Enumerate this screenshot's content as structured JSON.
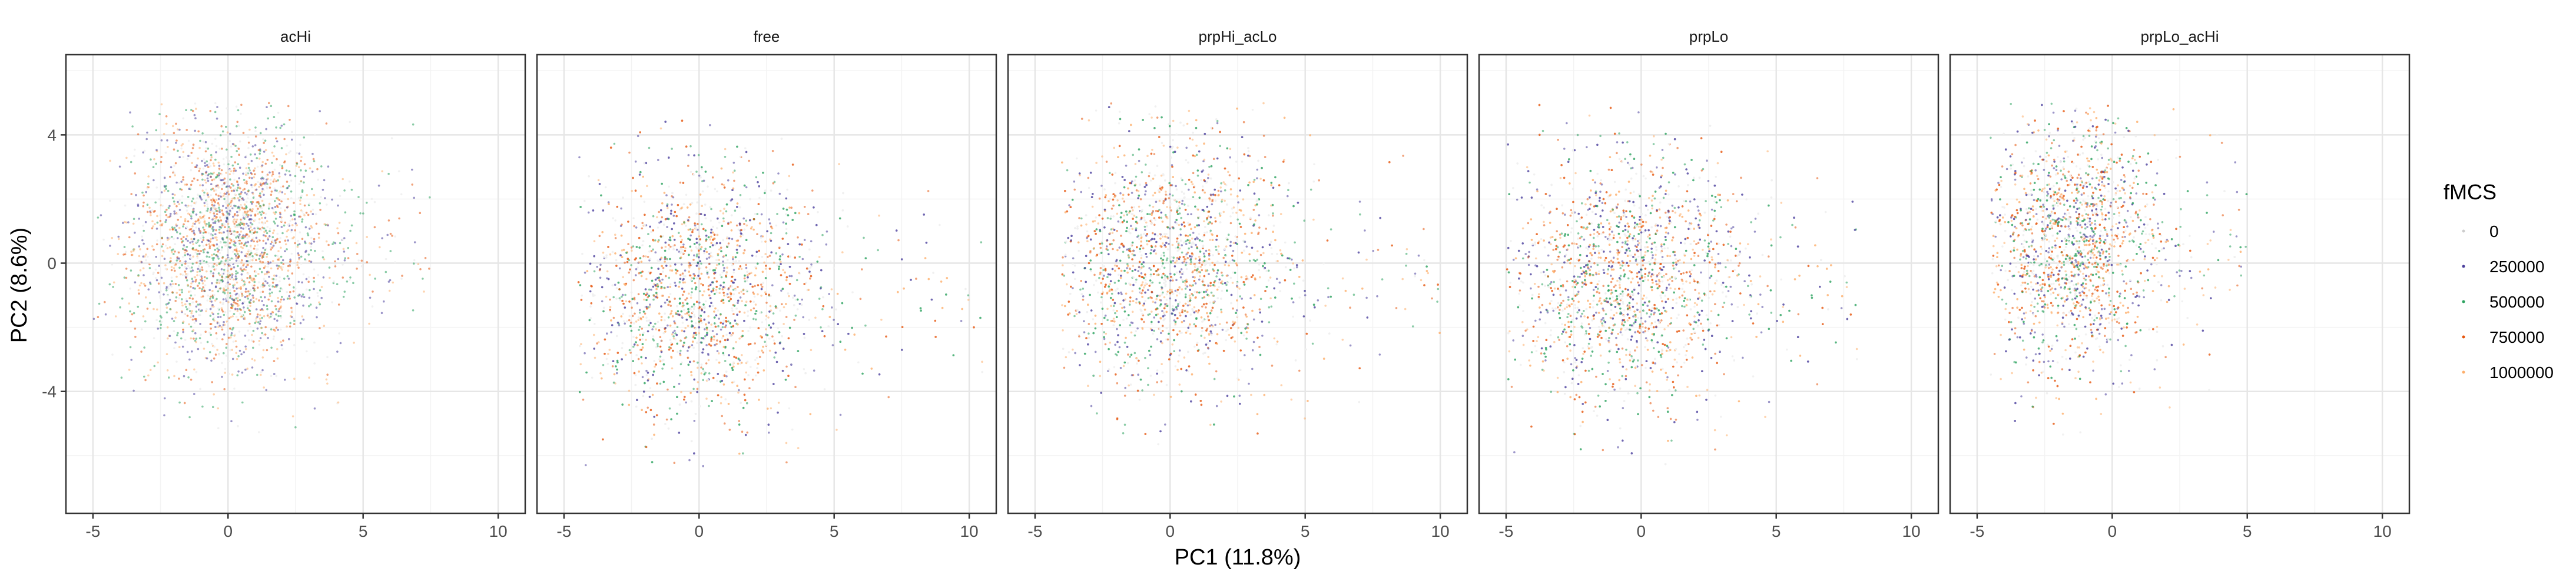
{
  "chart_data": {
    "type": "scatter",
    "xlabel": "PC1 (11.8%)",
    "ylabel": "PC2 (8.6%)",
    "xlim": [
      -6,
      11
    ],
    "ylim": [
      -7.8,
      6.5
    ],
    "x_ticks": [
      -5,
      0,
      5,
      10
    ],
    "y_ticks": [
      -4,
      0,
      4
    ],
    "grid": true,
    "legend": {
      "title": "fMCS",
      "position": "right",
      "entries": [
        {
          "label": "0",
          "color": "#f0f0f0"
        },
        {
          "label": "250000",
          "color": "#4b3f9c"
        },
        {
          "label": "500000",
          "color": "#2ca25f"
        },
        {
          "label": "750000",
          "color": "#e6550d"
        },
        {
          "label": "1000000",
          "color": "#fdae6b"
        }
      ]
    },
    "panels": [
      {
        "name": "acHi",
        "center": [
          0,
          0.5
        ],
        "spread": [
          1.8,
          1.9
        ],
        "x_range": [
          -5,
          7.5
        ],
        "y_range": [
          -5.5,
          5
        ]
      },
      {
        "name": "free",
        "center": [
          0,
          -0.9
        ],
        "spread": [
          2.2,
          1.9
        ],
        "x_range": [
          -4.5,
          10.5
        ],
        "y_range": [
          -6.5,
          4.5
        ]
      },
      {
        "name": "prpHi_acLo",
        "center": [
          0,
          0
        ],
        "spread": [
          2.2,
          1.9
        ],
        "x_range": [
          -4,
          10
        ],
        "y_range": [
          -6,
          5
        ]
      },
      {
        "name": "prpLo",
        "center": [
          -0.5,
          -0.5
        ],
        "spread": [
          2.2,
          1.9
        ],
        "x_range": [
          -5,
          8
        ],
        "y_range": [
          -6.5,
          5
        ]
      },
      {
        "name": "prpLo_acHi",
        "center": [
          -1.5,
          0.6
        ],
        "spread": [
          1.6,
          2.0
        ],
        "x_range": [
          -4.5,
          5
        ],
        "y_range": [
          -5.5,
          5
        ]
      }
    ]
  }
}
